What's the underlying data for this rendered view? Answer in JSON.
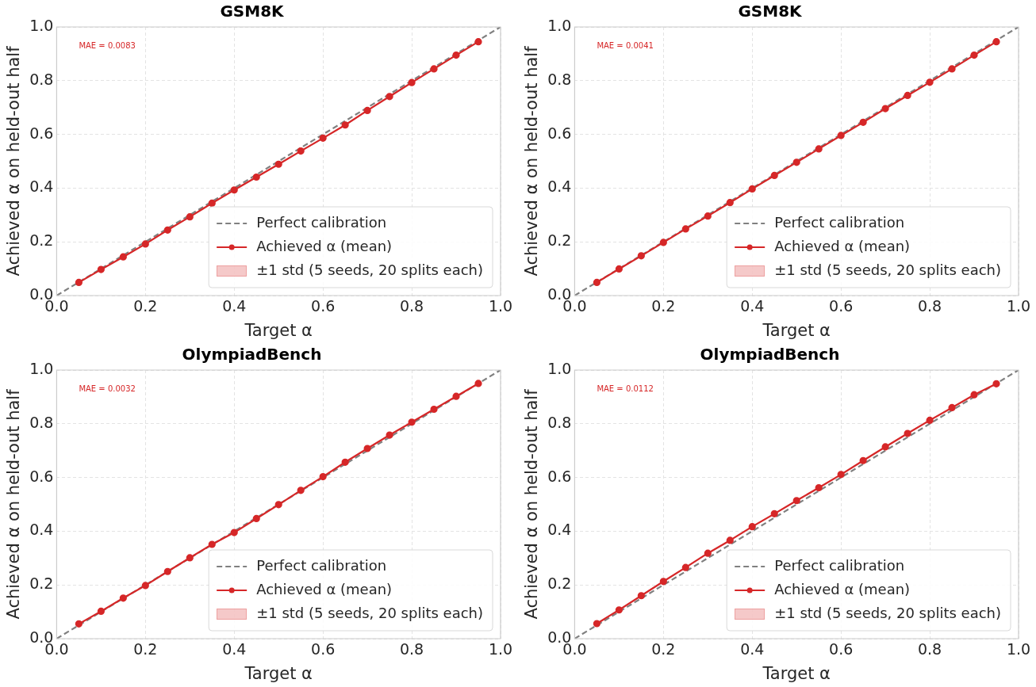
{
  "chart_data": [
    {
      "type": "line",
      "title": "GSM8K",
      "xlabel": "Target α",
      "ylabel": "Achieved α on held-out half",
      "xlim": [
        0,
        1
      ],
      "ylim": [
        0,
        1
      ],
      "xticks": [
        {
          "value": 0,
          "label": "0.0"
        },
        {
          "value": 0.2,
          "label": "0.2"
        },
        {
          "value": 0.4,
          "label": "0.4"
        },
        {
          "value": 0.6,
          "label": "0.6"
        },
        {
          "value": 0.8,
          "label": "0.8"
        },
        {
          "value": 1,
          "label": "1.0"
        }
      ],
      "yticks": [
        {
          "value": 0,
          "label": "0.0"
        },
        {
          "value": 0.2,
          "label": "0.2"
        },
        {
          "value": 0.4,
          "label": "0.4"
        },
        {
          "value": 0.6,
          "label": "0.6"
        },
        {
          "value": 0.8,
          "label": "0.8"
        },
        {
          "value": 1,
          "label": "1.0"
        }
      ],
      "grid": true,
      "legend": "bottom right",
      "annotations": [
        "MAE = 0.0083",
        "±1 std (5 seeds, 20 splits each)"
      ],
      "series": [
        {
          "name": "Perfect calibration",
          "color": "#808080",
          "line_style": "dashed",
          "marker": "none",
          "x": [
            0,
            1
          ],
          "values": [
            0,
            1
          ]
        },
        {
          "name": "Achieved α (mean)",
          "color": "#d62728",
          "line_style": "solid",
          "marker": "circle",
          "x": [
            0.05,
            0.1,
            0.15,
            0.2,
            0.25,
            0.3,
            0.35,
            0.4,
            0.45,
            0.5,
            0.55,
            0.6,
            0.65,
            0.7,
            0.75,
            0.8,
            0.85,
            0.9,
            0.95
          ],
          "values": [
            0.049,
            0.097,
            0.144,
            0.192,
            0.244,
            0.293,
            0.344,
            0.393,
            0.441,
            0.489,
            0.538,
            0.586,
            0.635,
            0.689,
            0.741,
            0.793,
            0.844,
            0.895,
            0.945
          ],
          "lower": [
            0.046,
            0.094,
            0.141,
            0.189,
            0.241,
            0.29,
            0.341,
            0.39,
            0.438,
            0.486,
            0.535,
            0.583,
            0.632,
            0.686,
            0.738,
            0.79,
            0.841,
            0.892,
            0.942
          ],
          "upper": [
            0.052,
            0.1,
            0.147,
            0.195,
            0.247,
            0.296,
            0.347,
            0.396,
            0.444,
            0.492,
            0.541,
            0.589,
            0.638,
            0.692,
            0.744,
            0.796,
            0.847,
            0.898,
            0.948
          ]
        }
      ]
    },
    {
      "type": "line",
      "title": "GSM8K",
      "xlabel": "Target α",
      "ylabel": "Achieved α on held-out half",
      "xlim": [
        0,
        1
      ],
      "ylim": [
        0,
        1
      ],
      "xticks": [
        {
          "value": 0,
          "label": "0.0"
        },
        {
          "value": 0.2,
          "label": "0.2"
        },
        {
          "value": 0.4,
          "label": "0.4"
        },
        {
          "value": 0.6,
          "label": "0.6"
        },
        {
          "value": 0.8,
          "label": "0.8"
        },
        {
          "value": 1,
          "label": "1.0"
        }
      ],
      "yticks": [
        {
          "value": 0,
          "label": "0.0"
        },
        {
          "value": 0.2,
          "label": "0.2"
        },
        {
          "value": 0.4,
          "label": "0.4"
        },
        {
          "value": 0.6,
          "label": "0.6"
        },
        {
          "value": 0.8,
          "label": "0.8"
        },
        {
          "value": 1,
          "label": "1.0"
        }
      ],
      "grid": true,
      "legend": "bottom right",
      "annotations": [
        "MAE = 0.0041",
        "±1 std (5 seeds, 20 splits each)"
      ],
      "series": [
        {
          "name": "Perfect calibration",
          "color": "#808080",
          "line_style": "dashed",
          "marker": "none",
          "x": [
            0,
            1
          ],
          "values": [
            0,
            1
          ]
        },
        {
          "name": "Achieved α (mean)",
          "color": "#d62728",
          "line_style": "solid",
          "marker": "circle",
          "x": [
            0.05,
            0.1,
            0.15,
            0.2,
            0.25,
            0.3,
            0.35,
            0.4,
            0.45,
            0.5,
            0.55,
            0.6,
            0.65,
            0.7,
            0.75,
            0.8,
            0.85,
            0.9,
            0.95
          ],
          "values": [
            0.049,
            0.099,
            0.148,
            0.198,
            0.248,
            0.296,
            0.346,
            0.397,
            0.447,
            0.496,
            0.546,
            0.596,
            0.645,
            0.696,
            0.745,
            0.794,
            0.844,
            0.895,
            0.945
          ],
          "lower": [
            0.046,
            0.096,
            0.145,
            0.195,
            0.245,
            0.293,
            0.343,
            0.394,
            0.444,
            0.493,
            0.543,
            0.593,
            0.642,
            0.693,
            0.742,
            0.791,
            0.841,
            0.892,
            0.942
          ],
          "upper": [
            0.052,
            0.102,
            0.151,
            0.201,
            0.251,
            0.299,
            0.349,
            0.4,
            0.45,
            0.499,
            0.549,
            0.599,
            0.648,
            0.699,
            0.748,
            0.797,
            0.847,
            0.898,
            0.948
          ]
        }
      ]
    },
    {
      "type": "line",
      "title": "OlympiadBench",
      "xlabel": "Target α",
      "ylabel": "Achieved α on held-out half",
      "xlim": [
        0,
        1
      ],
      "ylim": [
        0,
        1
      ],
      "xticks": [
        {
          "value": 0,
          "label": "0.0"
        },
        {
          "value": 0.2,
          "label": "0.2"
        },
        {
          "value": 0.4,
          "label": "0.4"
        },
        {
          "value": 0.6,
          "label": "0.6"
        },
        {
          "value": 0.8,
          "label": "0.8"
        },
        {
          "value": 1,
          "label": "1.0"
        }
      ],
      "yticks": [
        {
          "value": 0,
          "label": "0.0"
        },
        {
          "value": 0.2,
          "label": "0.2"
        },
        {
          "value": 0.4,
          "label": "0.4"
        },
        {
          "value": 0.6,
          "label": "0.6"
        },
        {
          "value": 0.8,
          "label": "0.8"
        },
        {
          "value": 1,
          "label": "1.0"
        }
      ],
      "grid": true,
      "legend": "bottom right",
      "annotations": [
        "MAE = 0.0032",
        "±1 std (5 seeds, 20 splits each)"
      ],
      "series": [
        {
          "name": "Perfect calibration",
          "color": "#808080",
          "line_style": "dashed",
          "marker": "none",
          "x": [
            0,
            1
          ],
          "values": [
            0,
            1
          ]
        },
        {
          "name": "Achieved α (mean)",
          "color": "#d62728",
          "line_style": "solid",
          "marker": "circle",
          "x": [
            0.05,
            0.1,
            0.15,
            0.2,
            0.25,
            0.3,
            0.35,
            0.4,
            0.45,
            0.5,
            0.55,
            0.6,
            0.65,
            0.7,
            0.75,
            0.8,
            0.85,
            0.9,
            0.95
          ],
          "values": [
            0.055,
            0.102,
            0.151,
            0.198,
            0.25,
            0.301,
            0.351,
            0.395,
            0.447,
            0.499,
            0.552,
            0.603,
            0.657,
            0.708,
            0.758,
            0.806,
            0.854,
            0.902,
            0.95
          ],
          "lower": [
            0.052,
            0.099,
            0.148,
            0.195,
            0.247,
            0.298,
            0.348,
            0.392,
            0.444,
            0.496,
            0.549,
            0.6,
            0.654,
            0.705,
            0.755,
            0.803,
            0.851,
            0.899,
            0.947
          ],
          "upper": [
            0.058,
            0.105,
            0.154,
            0.201,
            0.253,
            0.304,
            0.354,
            0.398,
            0.45,
            0.502,
            0.555,
            0.606,
            0.66,
            0.711,
            0.761,
            0.809,
            0.857,
            0.905,
            0.953
          ]
        }
      ]
    },
    {
      "type": "line",
      "title": "OlympiadBench",
      "xlabel": "Target α",
      "ylabel": "Achieved α on held-out half",
      "xlim": [
        0,
        1
      ],
      "ylim": [
        0,
        1
      ],
      "xticks": [
        {
          "value": 0,
          "label": "0.0"
        },
        {
          "value": 0.2,
          "label": "0.2"
        },
        {
          "value": 0.4,
          "label": "0.4"
        },
        {
          "value": 0.6,
          "label": "0.6"
        },
        {
          "value": 0.8,
          "label": "0.8"
        },
        {
          "value": 1,
          "label": "1.0"
        }
      ],
      "yticks": [
        {
          "value": 0,
          "label": "0.0"
        },
        {
          "value": 0.2,
          "label": "0.2"
        },
        {
          "value": 0.4,
          "label": "0.4"
        },
        {
          "value": 0.6,
          "label": "0.6"
        },
        {
          "value": 0.8,
          "label": "0.8"
        },
        {
          "value": 1,
          "label": "1.0"
        }
      ],
      "grid": true,
      "legend": "bottom right",
      "annotations": [
        "MAE = 0.0112",
        "±1 std (5 seeds, 20 splits each)"
      ],
      "series": [
        {
          "name": "Perfect calibration",
          "color": "#808080",
          "line_style": "dashed",
          "marker": "none",
          "x": [
            0,
            1
          ],
          "values": [
            0,
            1
          ]
        },
        {
          "name": "Achieved α (mean)",
          "color": "#d62728",
          "line_style": "solid",
          "marker": "circle",
          "x": [
            0.05,
            0.1,
            0.15,
            0.2,
            0.25,
            0.3,
            0.35,
            0.4,
            0.45,
            0.5,
            0.55,
            0.6,
            0.65,
            0.7,
            0.75,
            0.8,
            0.85,
            0.9,
            0.95
          ],
          "values": [
            0.056,
            0.107,
            0.16,
            0.213,
            0.265,
            0.318,
            0.366,
            0.417,
            0.465,
            0.514,
            0.562,
            0.611,
            0.663,
            0.714,
            0.764,
            0.813,
            0.86,
            0.908,
            0.949
          ],
          "lower": [
            0.053,
            0.104,
            0.157,
            0.21,
            0.262,
            0.315,
            0.363,
            0.414,
            0.462,
            0.511,
            0.559,
            0.608,
            0.66,
            0.711,
            0.761,
            0.81,
            0.857,
            0.905,
            0.946
          ],
          "upper": [
            0.059,
            0.11,
            0.163,
            0.216,
            0.268,
            0.321,
            0.369,
            0.42,
            0.468,
            0.517,
            0.565,
            0.614,
            0.666,
            0.717,
            0.767,
            0.816,
            0.863,
            0.911,
            0.952
          ]
        }
      ]
    }
  ]
}
